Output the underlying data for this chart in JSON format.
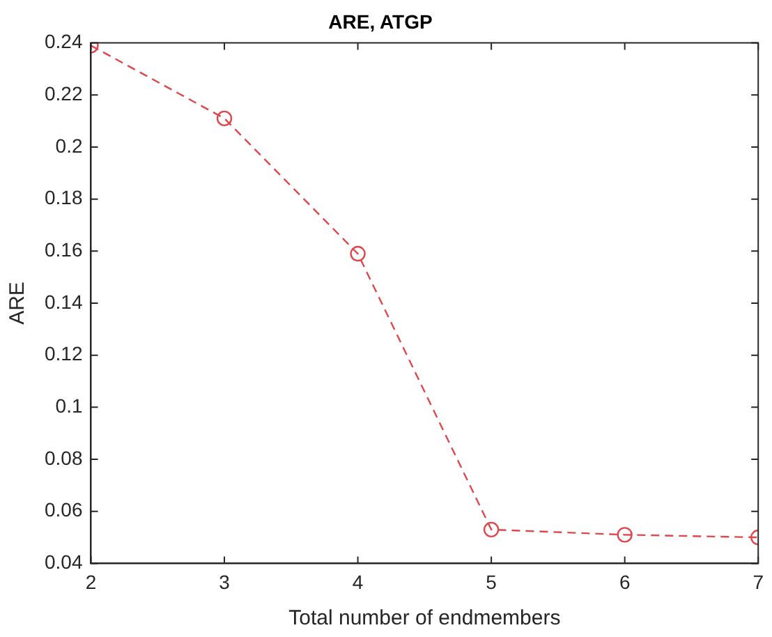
{
  "chart_data": {
    "type": "line",
    "title": "ARE, ATGP",
    "xlabel": "Total number of endmembers",
    "ylabel": "ARE",
    "x": [
      2,
      3,
      4,
      5,
      6,
      7
    ],
    "series": [
      {
        "color": "#e0474c",
        "values": [
          0.239,
          0.211,
          0.159,
          0.053,
          0.051,
          0.05
        ]
      }
    ],
    "xlim": [
      2,
      7
    ],
    "xticks": [
      2,
      3,
      4,
      5,
      6,
      7
    ],
    "ylim": [
      0.04,
      0.24
    ],
    "yticks": [
      0.04,
      0.06,
      0.08,
      0.1,
      0.12,
      0.14,
      0.16,
      0.18,
      0.2,
      0.22,
      0.24
    ],
    "grid": false,
    "legend": false,
    "marker": "circle",
    "line_style": "dashed"
  }
}
